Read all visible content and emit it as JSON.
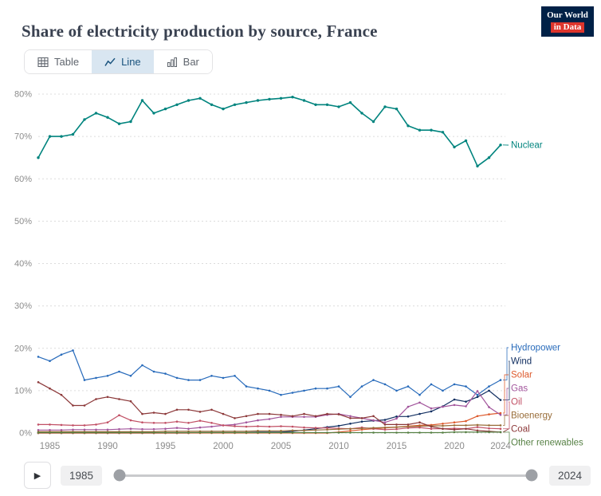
{
  "header": {
    "title": "Share of electricity production by source, France",
    "logo": {
      "line1": "Our World",
      "line2": "in Data",
      "bg_color": "#002147",
      "accent_color": "#dd352c"
    }
  },
  "tabs": [
    {
      "label": "Table",
      "active": false
    },
    {
      "label": "Line",
      "active": true
    },
    {
      "label": "Bar",
      "active": false
    }
  ],
  "timeline": {
    "start_year": "1985",
    "end_year": "2024"
  },
  "icons": {
    "play": "▶"
  },
  "chart_data": {
    "type": "line",
    "title": "Share of electricity production by source, France",
    "xlabel": "",
    "ylabel": "",
    "grid": true,
    "legend_position": "right",
    "ylim": [
      0,
      80
    ],
    "yticks": [
      0,
      10,
      20,
      30,
      40,
      50,
      60,
      70,
      80
    ],
    "ytick_labels": [
      "0%",
      "10%",
      "20%",
      "30%",
      "40%",
      "50%",
      "60%",
      "70%",
      "80%"
    ],
    "xticks": [
      1985,
      1990,
      1995,
      2000,
      2005,
      2010,
      2015,
      2020,
      2024
    ],
    "x": [
      1984,
      1985,
      1986,
      1987,
      1988,
      1989,
      1990,
      1991,
      1992,
      1993,
      1994,
      1995,
      1996,
      1997,
      1998,
      1999,
      2000,
      2001,
      2002,
      2003,
      2004,
      2005,
      2006,
      2007,
      2008,
      2009,
      2010,
      2011,
      2012,
      2013,
      2014,
      2015,
      2016,
      2017,
      2018,
      2019,
      2020,
      2021,
      2022,
      2023,
      2024
    ],
    "series": [
      {
        "name": "Nuclear",
        "color": "#00847e",
        "values": [
          65,
          70,
          70,
          70.5,
          74,
          75.5,
          74.5,
          73,
          73.5,
          78.5,
          75.5,
          76.5,
          77.5,
          78.5,
          79,
          77.5,
          76.5,
          77.5,
          78,
          78.5,
          78.8,
          79,
          79.3,
          78.5,
          77.5,
          77.5,
          77,
          78,
          75.5,
          73.5,
          77,
          76.5,
          72.5,
          71.5,
          71.5,
          71,
          67.5,
          69,
          63,
          65,
          68
        ]
      },
      {
        "name": "Hydropower",
        "color": "#286bbb",
        "values": [
          18,
          17,
          18.5,
          19.5,
          12.5,
          13,
          13.5,
          14.5,
          13.5,
          16,
          14.5,
          14,
          13,
          12.5,
          12.5,
          13.5,
          13,
          13.5,
          11,
          10.5,
          10,
          9,
          9.5,
          10,
          10.5,
          10.5,
          11,
          8.5,
          11,
          12.5,
          11.5,
          10,
          11,
          9,
          11.5,
          10,
          11.5,
          11,
          9,
          11,
          12.5
        ]
      },
      {
        "name": "Wind",
        "color": "#133062",
        "values": [
          0,
          0,
          0,
          0,
          0,
          0,
          0,
          0,
          0,
          0,
          0,
          0,
          0,
          0,
          0.1,
          0.1,
          0.1,
          0.1,
          0.1,
          0.2,
          0.2,
          0.2,
          0.4,
          0.7,
          1,
          1.4,
          1.7,
          2.2,
          2.7,
          2.9,
          3.1,
          3.9,
          3.9,
          4.5,
          5.1,
          6.3,
          7.9,
          7.4,
          8.5,
          10,
          7.8
        ]
      },
      {
        "name": "Solar",
        "color": "#dd5a2d",
        "values": [
          0,
          0,
          0,
          0,
          0,
          0,
          0,
          0,
          0,
          0,
          0,
          0,
          0,
          0,
          0,
          0,
          0,
          0,
          0,
          0,
          0,
          0,
          0,
          0,
          0,
          0,
          0.2,
          0.5,
          0.8,
          1,
          1.2,
          1.4,
          1.6,
          1.8,
          1.9,
          2.2,
          2.5,
          2.8,
          4,
          4.4,
          4.7
        ]
      },
      {
        "name": "Gas",
        "color": "#a2559c",
        "values": [
          0.7,
          0.7,
          0.7,
          0.8,
          0.8,
          0.8,
          0.8,
          0.9,
          1,
          0.9,
          0.9,
          1,
          1.2,
          1,
          1.3,
          1.5,
          1.8,
          2,
          2.5,
          3,
          3.3,
          3.8,
          3.8,
          3.8,
          3.8,
          4.3,
          4.5,
          4,
          3.5,
          3,
          2.5,
          3.4,
          6.2,
          7.2,
          5.8,
          6.2,
          6.6,
          6.3,
          9.9,
          6.1,
          4.3
        ]
      },
      {
        "name": "Oil",
        "color": "#c15065",
        "values": [
          2,
          2,
          1.9,
          1.8,
          1.8,
          2,
          2.5,
          4.2,
          3,
          2.5,
          2.4,
          2.4,
          2.7,
          2.4,
          2.9,
          2.4,
          1.8,
          1.6,
          1.5,
          1.6,
          1.5,
          1.6,
          1.5,
          1.3,
          1.2,
          1.2,
          1.1,
          1,
          1.3,
          1,
          0.8,
          0.9,
          1.2,
          1.3,
          1,
          1,
          1.1,
          1,
          1.4,
          1.1,
          1
        ]
      },
      {
        "name": "Bioenergy",
        "color": "#996d39",
        "values": [
          0.3,
          0.3,
          0.3,
          0.3,
          0.3,
          0.3,
          0.3,
          0.3,
          0.3,
          0.3,
          0.3,
          0.4,
          0.4,
          0.4,
          0.4,
          0.4,
          0.4,
          0.4,
          0.4,
          0.5,
          0.5,
          0.5,
          0.6,
          0.6,
          0.7,
          0.8,
          0.9,
          1,
          1.1,
          1.2,
          1.3,
          1.4,
          1.5,
          1.6,
          1.7,
          1.7,
          1.8,
          1.8,
          1.9,
          1.8,
          1.8
        ]
      },
      {
        "name": "Coal",
        "color": "#8c3839",
        "values": [
          12,
          10.5,
          9,
          6.5,
          6.5,
          8,
          8.5,
          8,
          7.5,
          4.5,
          4.8,
          4.5,
          5.5,
          5.5,
          5,
          5.5,
          4.5,
          3.5,
          4,
          4.5,
          4.5,
          4.3,
          4,
          4.5,
          4,
          4.5,
          4.4,
          3.5,
          3.5,
          4,
          2,
          2,
          2,
          2.5,
          1.5,
          1,
          0.8,
          1,
          0.6,
          0.4,
          0.2
        ]
      },
      {
        "name": "Other renewables",
        "color": "#578145",
        "values": [
          0.1,
          0.1,
          0.1,
          0.1,
          0.1,
          0.1,
          0.1,
          0.1,
          0.1,
          0.1,
          0.1,
          0.1,
          0.1,
          0.1,
          0.1,
          0.1,
          0.1,
          0.1,
          0.1,
          0.1,
          0.1,
          0.1,
          0.1,
          0.1,
          0.1,
          0.1,
          0.1,
          0.1,
          0.1,
          0.1,
          0.1,
          0.1,
          0.1,
          0.1,
          0.1,
          0.1,
          0.2,
          0.2,
          0.2,
          0.2,
          0.2
        ]
      }
    ]
  }
}
